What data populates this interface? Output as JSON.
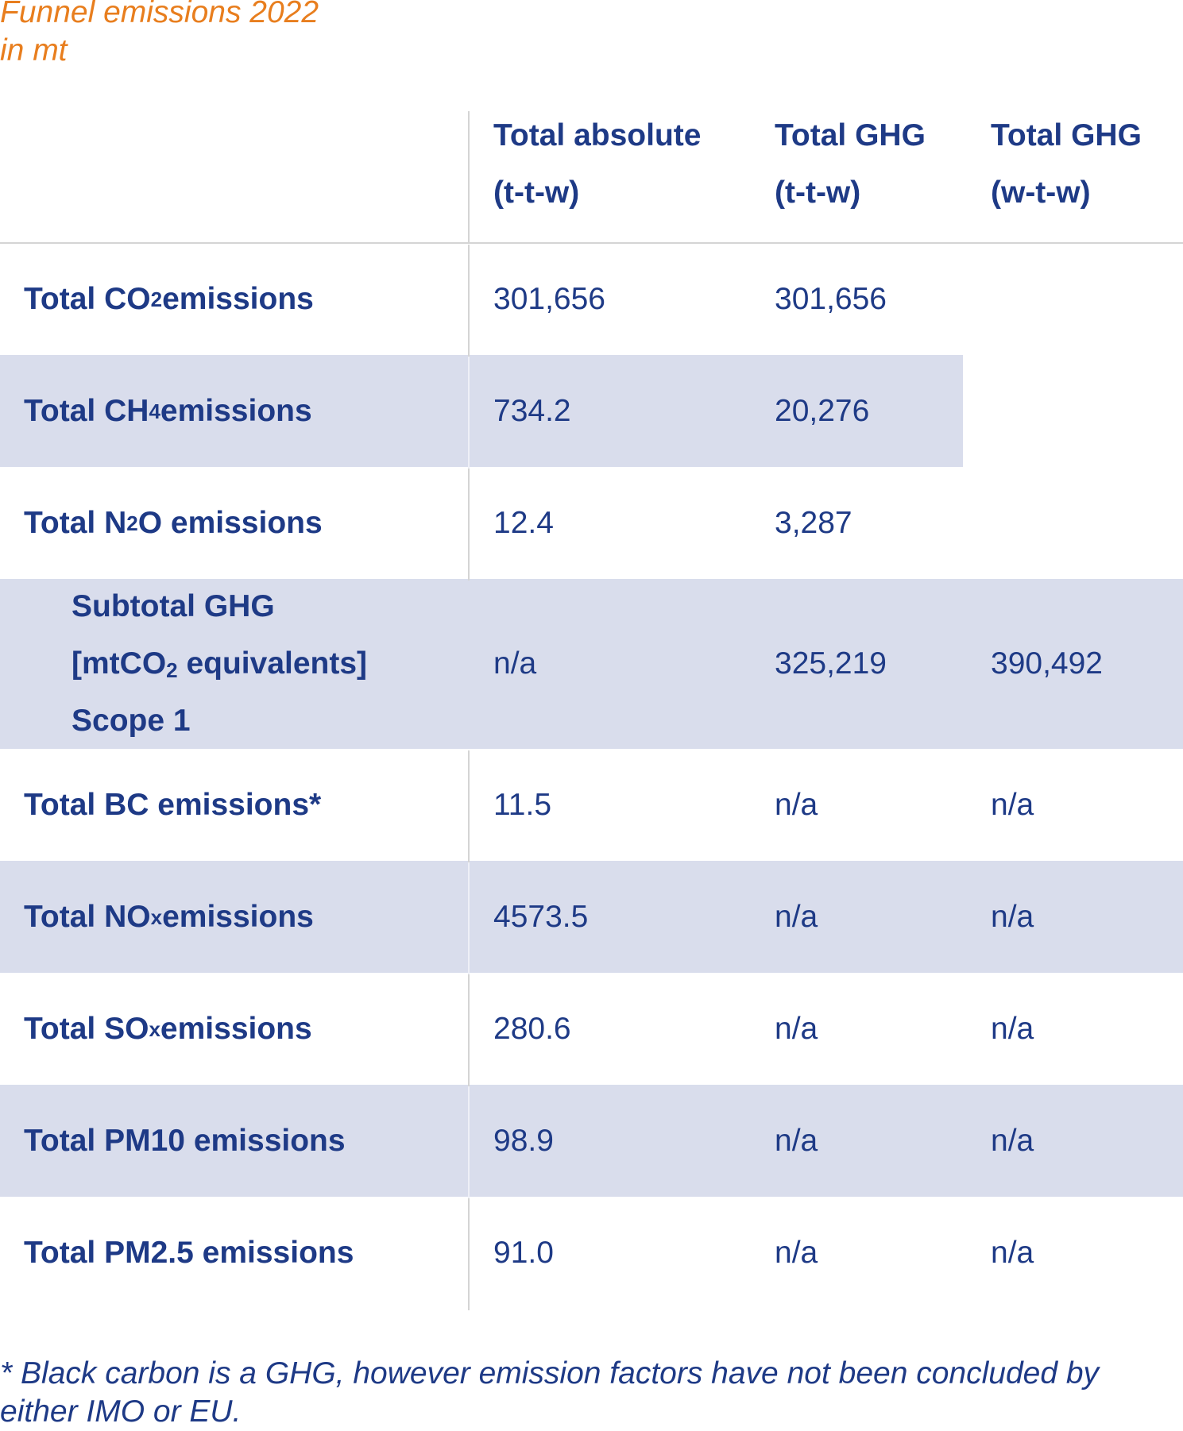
{
  "title": {
    "line1": "Funnel emissions 2022",
    "line2": "in mt"
  },
  "columns": [
    {
      "line1": "Total absolute",
      "line2": "(t-t-w)"
    },
    {
      "line1": "Total GHG",
      "line2": "(t-t-w)"
    },
    {
      "line1": "Total GHG",
      "line2": "(w-t-w)"
    }
  ],
  "rows": [
    {
      "label_pre": "Total CO",
      "label_sub": "2",
      "label_post": " emissions",
      "abs": "301,656",
      "ttw": "301,656",
      "wtw": ""
    },
    {
      "label_pre": "Total CH",
      "label_sub": "4",
      "label_post": " emissions",
      "abs": "734.2",
      "ttw": "20,276",
      "wtw": ""
    },
    {
      "label_pre": "Total N",
      "label_sub": "2",
      "label_post": "O emissions",
      "abs": "12.4",
      "ttw": "3,287",
      "wtw": ""
    },
    {
      "label_line1": "Subtotal GHG",
      "label_line2_pre": "[mtCO",
      "label_line2_sub": "2",
      "label_line2_post": " equivalents]",
      "label_line3": "Scope 1",
      "abs": "n/a",
      "ttw": "325,219",
      "wtw": "390,492"
    },
    {
      "label_pre": "Total BC emissions*",
      "label_sub": "",
      "label_post": "",
      "abs": "11.5",
      "ttw": "n/a",
      "wtw": "n/a"
    },
    {
      "label_pre": "Total NO",
      "label_sub": "x",
      "label_post": " emissions",
      "abs": "4573.5",
      "ttw": "n/a",
      "wtw": "n/a"
    },
    {
      "label_pre": "Total SO",
      "label_sub": "x",
      "label_post": " emissions",
      "abs": "280.6",
      "ttw": "n/a",
      "wtw": "n/a"
    },
    {
      "label_pre": "Total PM10 emissions",
      "label_sub": "",
      "label_post": "",
      "abs": "98.9",
      "ttw": "n/a",
      "wtw": "n/a"
    },
    {
      "label_pre": "Total PM2.5 emissions",
      "label_sub": "",
      "label_post": "",
      "abs": "91.0",
      "ttw": "n/a",
      "wtw": "n/a"
    }
  ],
  "footnote": "* Black carbon is a GHG, however emission factors have not been concluded by either IMO or EU.",
  "colors": {
    "title": "#e87e1e",
    "text": "#1e3a86",
    "row_shade": "#d9ddec",
    "rule": "#d4d4d4"
  }
}
